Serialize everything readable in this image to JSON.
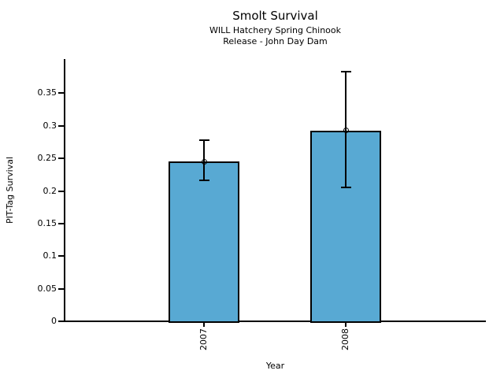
{
  "chart_data": {
    "type": "bar",
    "title": "Smolt Survival",
    "subtitle": [
      "WILL Hatchery Spring Chinook",
      "Release - John Day Dam"
    ],
    "xlabel": "Year",
    "ylabel": "PIT-Tag Survival",
    "categories": [
      "2007",
      "2008"
    ],
    "values": [
      0.245,
      0.293
    ],
    "error_low": [
      0.216,
      0.205
    ],
    "error_high": [
      0.278,
      0.383
    ],
    "ylim": [
      0,
      0.4025
    ],
    "yticks": [
      0,
      0.05,
      0.1,
      0.15,
      0.2,
      0.25,
      0.3,
      0.35
    ],
    "ytick_labels": [
      "0",
      "0.05",
      "0.1",
      "0.15",
      "0.2",
      "0.25",
      "0.3",
      "0.35"
    ],
    "grid": false,
    "legend": null,
    "bar_color": "#58a9d3",
    "edge_color": "#000000",
    "background": "#ffffff",
    "marker": "open-circle",
    "error_bars": true
  }
}
